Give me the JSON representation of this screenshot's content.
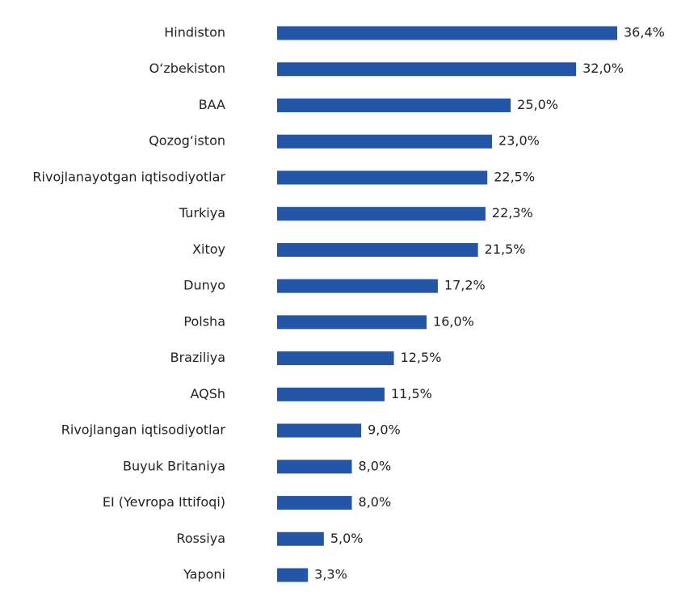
{
  "chart_data": {
    "type": "bar",
    "orientation": "horizontal",
    "color": "#2356a6",
    "categories": [
      "Hindiston",
      "O‘zbekiston",
      "BAA",
      "Qozog‘iston",
      "Rivojlanayotgan iqtisodiyotlar",
      "Turkiya",
      "Xitoy",
      "Dunyo",
      "Polsha",
      "Braziliya",
      "AQSh",
      "Rivojlangan iqtisodiyotlar",
      "Buyuk Britaniya",
      "EI (Yevropa Ittifoqi)",
      "Rossiya",
      "Yaponi"
    ],
    "values": [
      36.4,
      32.0,
      25.0,
      23.0,
      22.5,
      22.3,
      21.5,
      17.2,
      16.0,
      12.5,
      11.5,
      9.0,
      8.0,
      8.0,
      5.0,
      3.3
    ],
    "value_labels": [
      "36,4%",
      "32,0%",
      "25,0%",
      "23,0%",
      "22,5%",
      "22,3%",
      "21,5%",
      "17,2%",
      "16,0%",
      "12,5%",
      "11,5%",
      "9,0%",
      "8,0%",
      "8,0%",
      "5,0%",
      "3,3%"
    ]
  }
}
